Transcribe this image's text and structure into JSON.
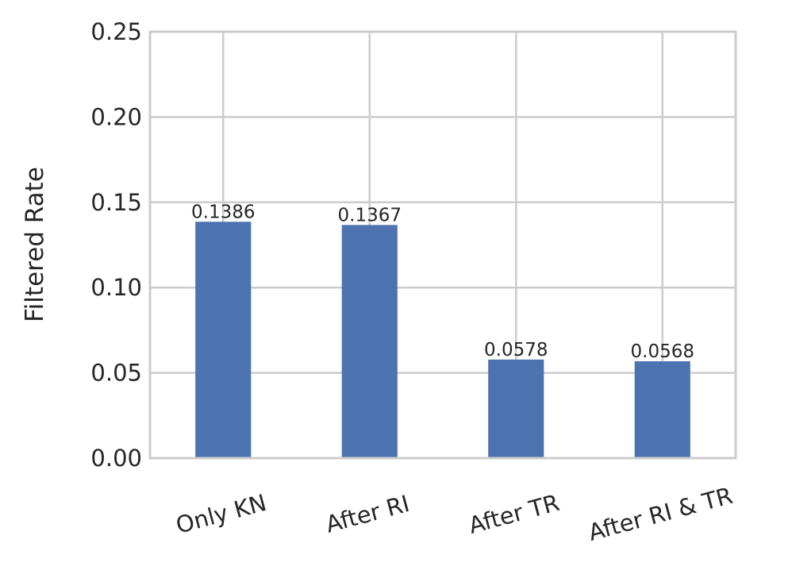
{
  "chart_data": {
    "type": "bar",
    "ylabel": "Filtered Rate",
    "categories": [
      "Only KN",
      "After RI",
      "After TR",
      "After RI & TR"
    ],
    "values": [
      0.1386,
      0.1367,
      0.0578,
      0.0568
    ],
    "color": "#4c72b0",
    "ylim": [
      0,
      0.25
    ],
    "yticks": [
      {
        "value": 0,
        "label": "0.00"
      },
      0.05,
      {
        "value": 0.1,
        "label": "0.10"
      },
      0.15,
      {
        "value": 0.2,
        "label": "0.20"
      },
      0.25
    ],
    "grid": true
  }
}
